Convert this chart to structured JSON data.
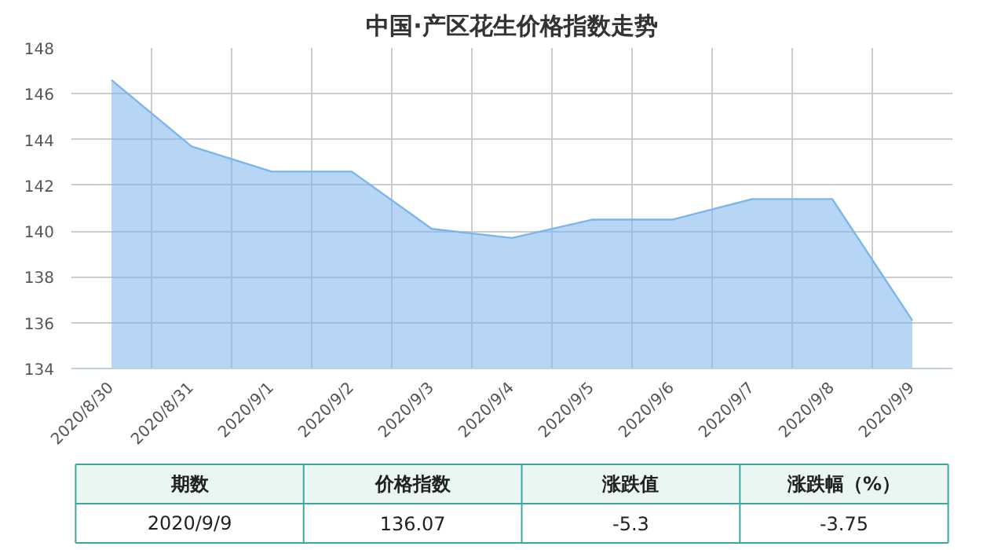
{
  "chart_data": {
    "type": "area",
    "title": "中国·产区花生价格指数走势",
    "categories": [
      "2020/8/30",
      "2020/8/31",
      "2020/9/1",
      "2020/9/2",
      "2020/9/3",
      "2020/9/4",
      "2020/9/5",
      "2020/9/6",
      "2020/9/7",
      "2020/9/8",
      "2020/9/9"
    ],
    "series": [
      {
        "color": "#7cb5ec",
        "values": [
          146.6,
          143.7,
          142.6,
          142.6,
          140.1,
          139.7,
          140.5,
          140.5,
          141.4,
          141.4,
          136.1
        ]
      }
    ],
    "ylim": [
      134,
      148
    ],
    "yticks": [
      134,
      136,
      138,
      140,
      142,
      144,
      146,
      148
    ],
    "grid": true,
    "annotations": [
      "期数",
      "价格指数",
      "涨跌值",
      "涨跌幅（%）",
      "2020/9/9",
      "136.07",
      "-5.3",
      "-3.75"
    ]
  }
}
